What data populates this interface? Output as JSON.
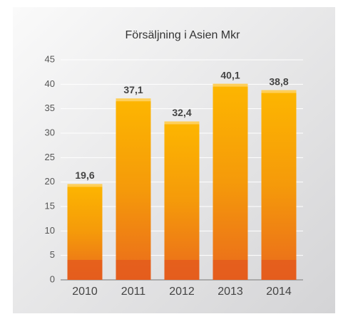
{
  "chart_data": {
    "type": "bar",
    "title": "Försäljning i Asien Mkr",
    "categories": [
      "2010",
      "2011",
      "2012",
      "2013",
      "2014"
    ],
    "values": [
      19.6,
      37.1,
      32.4,
      40.1,
      38.8
    ],
    "value_labels": [
      "19,6",
      "37,1",
      "32,4",
      "40,1",
      "38,8"
    ],
    "color": "#f39a0c",
    "ylim": [
      0,
      45
    ],
    "yticks": [
      0,
      5,
      10,
      15,
      20,
      25,
      30,
      35,
      40,
      45
    ],
    "grid": true
  }
}
